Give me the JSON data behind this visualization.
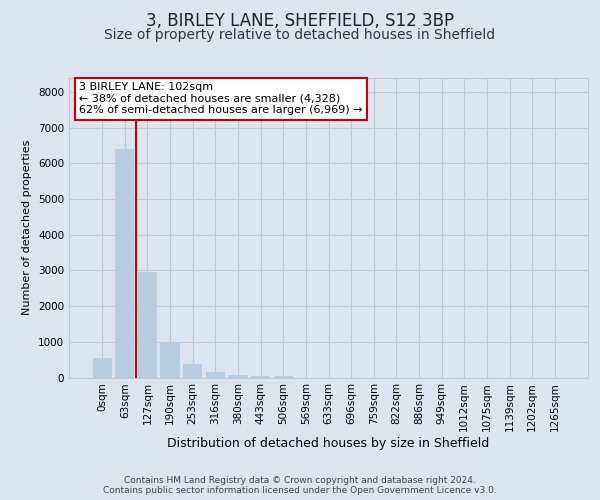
{
  "title": "3, BIRLEY LANE, SHEFFIELD, S12 3BP",
  "subtitle": "Size of property relative to detached houses in Sheffield",
  "xlabel": "Distribution of detached houses by size in Sheffield",
  "ylabel": "Number of detached properties",
  "bar_labels": [
    "0sqm",
    "63sqm",
    "127sqm",
    "190sqm",
    "253sqm",
    "316sqm",
    "380sqm",
    "443sqm",
    "506sqm",
    "569sqm",
    "633sqm",
    "696sqm",
    "759sqm",
    "822sqm",
    "886sqm",
    "949sqm",
    "1012sqm",
    "1075sqm",
    "1139sqm",
    "1202sqm",
    "1265sqm"
  ],
  "bar_values": [
    550,
    6400,
    2950,
    980,
    380,
    160,
    80,
    50,
    30,
    0,
    0,
    0,
    0,
    0,
    0,
    0,
    0,
    0,
    0,
    0,
    0
  ],
  "bar_color": "#b8ccdf",
  "vline_x": 1.5,
  "vline_color": "#cc0000",
  "annotation_box_text": "3 BIRLEY LANE: 102sqm\n← 38% of detached houses are smaller (4,328)\n62% of semi-detached houses are larger (6,969) →",
  "annotation_box_edgecolor": "#cc0000",
  "annotation_box_facecolor": "#ffffff",
  "ylim": [
    0,
    8400
  ],
  "yticks": [
    0,
    1000,
    2000,
    3000,
    4000,
    5000,
    6000,
    7000,
    8000
  ],
  "grid_color": "#c0c8d8",
  "background_color": "#dce4ef",
  "plot_background": "#dce4ef",
  "footer_text": "Contains HM Land Registry data © Crown copyright and database right 2024.\nContains public sector information licensed under the Open Government Licence v3.0.",
  "title_fontsize": 12,
  "subtitle_fontsize": 10,
  "xlabel_fontsize": 9,
  "ylabel_fontsize": 8,
  "tick_fontsize": 7.5,
  "annotation_fontsize": 8,
  "footer_fontsize": 6.5
}
